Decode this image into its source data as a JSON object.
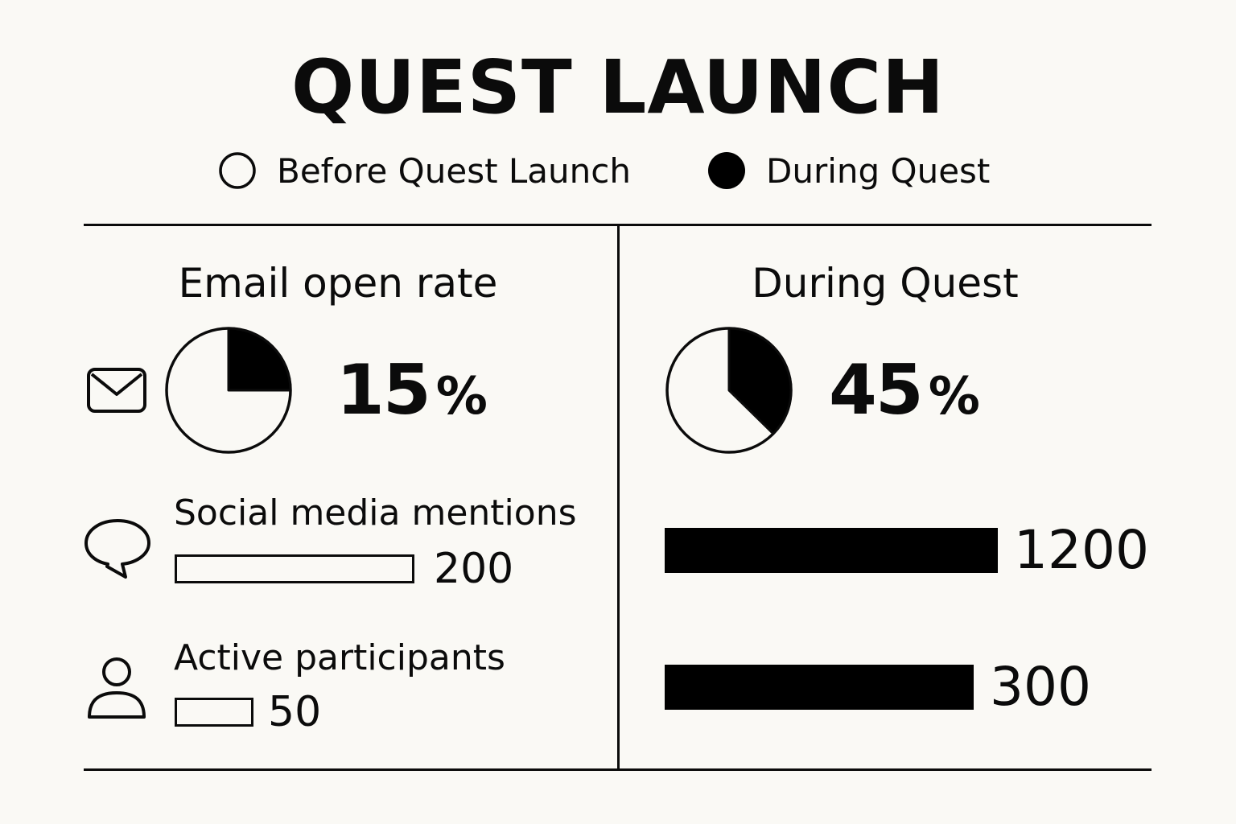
{
  "title": "QUEST LAUNCH",
  "legend": {
    "before": "Before Quest Launch",
    "during": "During Quest"
  },
  "panels": {
    "left_title": "Email open rate",
    "right_title": "During Quest"
  },
  "icons": [
    "mail-icon",
    "chat-bubble-icon",
    "person-icon"
  ],
  "colors": {
    "ink": "#0b0b0b",
    "background": "#faf9f5",
    "fill": "#000000"
  },
  "chart_data": {
    "type": "bar",
    "title": "QUEST LAUNCH",
    "series_names": [
      "Before Quest Launch",
      "During Quest"
    ],
    "email_open_rate": {
      "label": "Email open rate",
      "before": 15,
      "during": 45,
      "before_text": "15",
      "during_text": "45",
      "unit": "%"
    },
    "metrics": [
      {
        "label": "Social media mentions",
        "before": 200,
        "during": 1200,
        "before_text": "200",
        "during_text": "1200"
      },
      {
        "label": "Active participants",
        "before": 50,
        "during": 300,
        "before_text": "50",
        "during_text": "300"
      }
    ]
  }
}
